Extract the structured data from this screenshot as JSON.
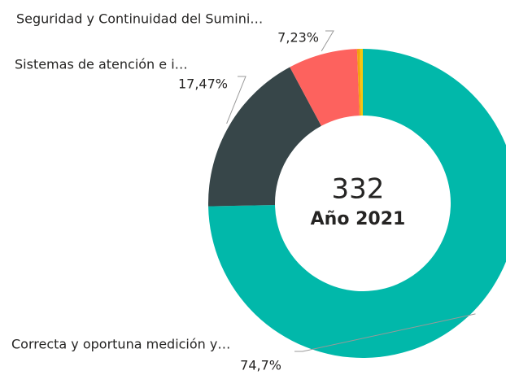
{
  "chart_data": {
    "type": "donut",
    "categories": [
      "Correcta y oportuna medición y…",
      "Sistemas de atención e i…",
      "Seguridad y Continuidad del Sumini…",
      null,
      null
    ],
    "values": [
      74.7,
      17.47,
      7.23,
      0.3,
      0.3
    ],
    "value_labels": [
      "74,7%",
      "17,47%",
      "7,23%",
      null,
      null
    ],
    "colors": [
      "#01B8AA",
      "#374649",
      "#FD625E",
      "#F2A20F",
      "#F2C80F"
    ],
    "center_value": 332,
    "center_label": "Año 2021"
  }
}
